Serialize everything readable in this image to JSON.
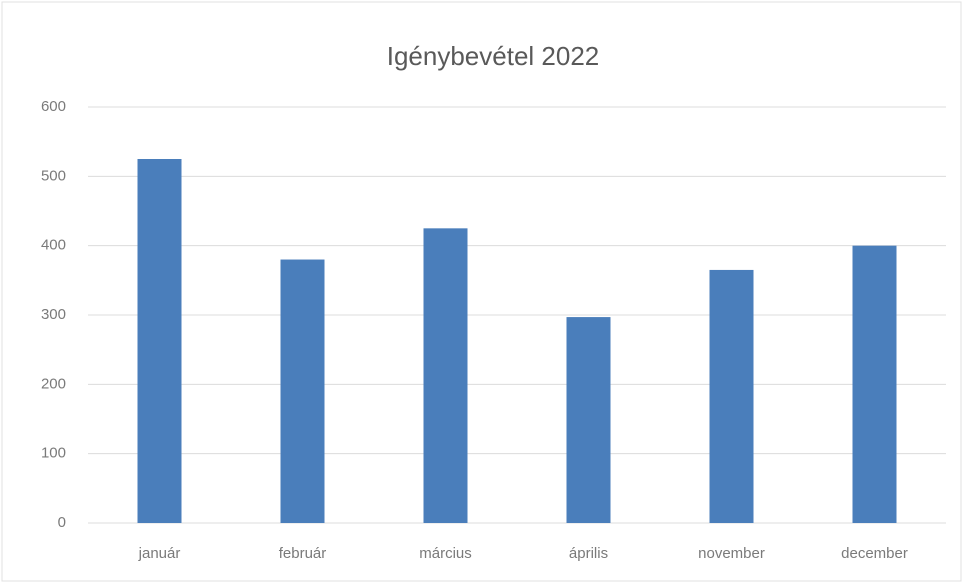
{
  "chart_data": {
    "type": "bar",
    "title": "Igénybevétel 2022",
    "categories": [
      "január",
      "február",
      "március",
      "április",
      "november",
      "december"
    ],
    "values": [
      525,
      380,
      425,
      297,
      365,
      400
    ],
    "color": "#4a7ebb",
    "ylim": [
      0,
      600
    ],
    "yticks": [
      0,
      100,
      200,
      300,
      400,
      500,
      600
    ],
    "grid": true
  }
}
